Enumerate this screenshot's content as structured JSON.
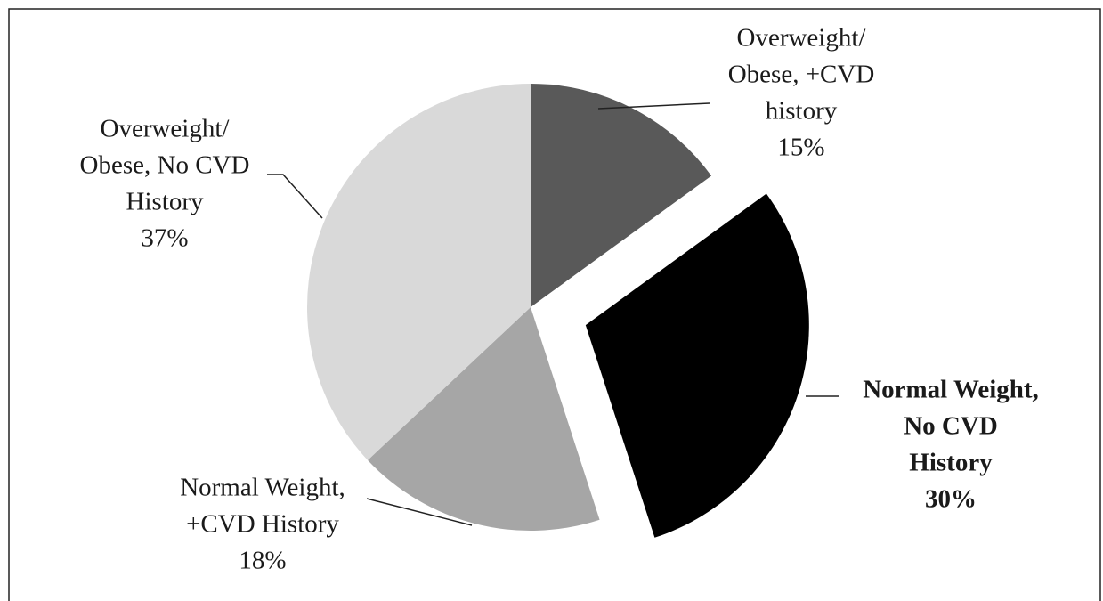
{
  "chart_data": {
    "type": "pie",
    "categories": [
      [
        "Overweight/",
        "Obese, +CVD",
        "history"
      ],
      [
        "Normal Weight,",
        "No CVD",
        "History"
      ],
      [
        "Normal Weight,",
        "+CVD History"
      ],
      [
        "Overweight/",
        "Obese, No CVD",
        "History"
      ]
    ],
    "values": [
      15,
      30,
      18,
      37
    ],
    "value_labels": [
      "15%",
      "30%",
      "18%",
      "37%"
    ],
    "colors": [
      "#595959",
      "#000000",
      "#a6a6a6",
      "#d9d9d9"
    ],
    "exploded": [
      false,
      true,
      false,
      false
    ]
  }
}
